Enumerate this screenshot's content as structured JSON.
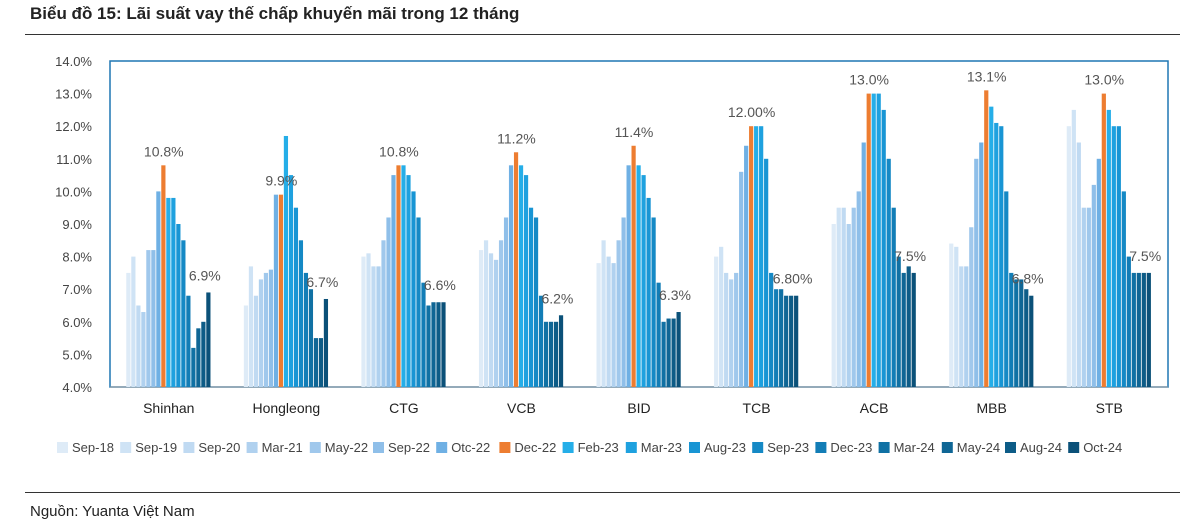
{
  "header": {
    "title": "Biểu đồ 15: Lãi suất vay thế chấp khuyến mãi trong 12 tháng"
  },
  "footer": {
    "source": "Nguồn: Yuanta Việt Nam"
  },
  "chart_data": {
    "type": "bar",
    "title": "",
    "xlabel": "",
    "ylabel": "",
    "ylim": [
      4.0,
      14.0
    ],
    "y_ticks": [
      "4.0%",
      "5.0%",
      "6.0%",
      "7.0%",
      "8.0%",
      "9.0%",
      "10.0%",
      "11.0%",
      "12.0%",
      "13.0%",
      "14.0%"
    ],
    "grid": false,
    "legend_position": "bottom",
    "categories": [
      "Shinhan",
      "Hongleong",
      "CTG",
      "VCB",
      "BID",
      "TCB",
      "ACB",
      "MBB",
      "STB"
    ],
    "annotations": [
      "10.8%",
      "6.9%",
      "9.9%",
      "6.7%",
      "10.8%",
      "6.6%",
      "11.2%",
      "6.2%",
      "11.4%",
      "6.3%",
      "12.00%",
      "6.80%",
      "13.0%",
      "7.5%",
      "13.1%",
      "6.8%",
      "13.0%",
      "7.5%"
    ],
    "series": [
      {
        "name": "Sep-18",
        "color": "#deebf7",
        "values": [
          7.5,
          6.5,
          8.0,
          8.2,
          7.8,
          8.0,
          9.0,
          8.4,
          12.0
        ]
      },
      {
        "name": "Sep-19",
        "color": "#cfe3f5",
        "values": [
          8.0,
          7.7,
          8.1,
          8.5,
          8.5,
          8.3,
          9.5,
          8.3,
          12.5
        ]
      },
      {
        "name": "Sep-20",
        "color": "#c0daf2",
        "values": [
          6.5,
          6.8,
          7.7,
          8.1,
          8.0,
          7.5,
          9.5,
          7.7,
          11.5
        ]
      },
      {
        "name": "Mar-21",
        "color": "#b0d1ef",
        "values": [
          6.3,
          7.3,
          7.7,
          7.9,
          7.8,
          7.3,
          9.0,
          7.7,
          9.5
        ]
      },
      {
        "name": "May-22",
        "color": "#a0c8ec",
        "values": [
          8.2,
          7.5,
          8.5,
          8.5,
          8.5,
          7.5,
          9.5,
          8.9,
          9.5
        ]
      },
      {
        "name": "Sep-22",
        "color": "#8fbfe9",
        "values": [
          8.2,
          7.6,
          9.2,
          9.2,
          9.2,
          10.6,
          10.0,
          11.0,
          10.2
        ]
      },
      {
        "name": "Otc-22",
        "color": "#6fb0e4",
        "values": [
          10.0,
          9.9,
          10.5,
          10.8,
          10.8,
          11.4,
          11.5,
          11.5,
          11.0
        ]
      },
      {
        "name": "Dec-22",
        "color": "#ed7d31",
        "values": [
          10.8,
          9.9,
          10.8,
          11.2,
          11.4,
          12.0,
          13.0,
          13.1,
          13.0
        ]
      },
      {
        "name": "Feb-23",
        "color": "#25aee8",
        "values": [
          9.8,
          11.7,
          10.8,
          10.8,
          10.8,
          12.0,
          13.0,
          12.6,
          12.5
        ]
      },
      {
        "name": "Mar-23",
        "color": "#1ea1df",
        "values": [
          9.8,
          10.5,
          10.5,
          10.5,
          10.5,
          12.0,
          13.0,
          12.1,
          12.0
        ]
      },
      {
        "name": "Aug-23",
        "color": "#1895d4",
        "values": [
          9.0,
          9.5,
          10.0,
          9.5,
          9.8,
          11.0,
          12.5,
          12.0,
          12.0
        ]
      },
      {
        "name": "Sep-23",
        "color": "#1589c5",
        "values": [
          8.5,
          8.5,
          9.2,
          9.2,
          9.2,
          7.5,
          11.0,
          10.0,
          10.0
        ]
      },
      {
        "name": "Dec-23",
        "color": "#127db6",
        "values": [
          6.8,
          7.5,
          7.2,
          6.8,
          7.2,
          7.0,
          9.5,
          7.5,
          8.0
        ]
      },
      {
        "name": "Mar-24",
        "color": "#1071a4",
        "values": [
          5.2,
          7.0,
          6.5,
          6.0,
          6.0,
          7.0,
          8.0,
          7.3,
          7.5
        ]
      },
      {
        "name": "May-24",
        "color": "#0f6695",
        "values": [
          5.8,
          5.5,
          6.6,
          6.0,
          6.1,
          6.8,
          7.5,
          7.3,
          7.5
        ]
      },
      {
        "name": "Aug-24",
        "color": "#0d5c87",
        "values": [
          6.0,
          5.5,
          6.6,
          6.0,
          6.1,
          6.8,
          7.7,
          7.0,
          7.5
        ]
      },
      {
        "name": "Oct-24",
        "color": "#0b5179",
        "values": [
          6.9,
          6.7,
          6.6,
          6.2,
          6.3,
          6.8,
          7.5,
          6.8,
          7.5
        ]
      }
    ]
  }
}
